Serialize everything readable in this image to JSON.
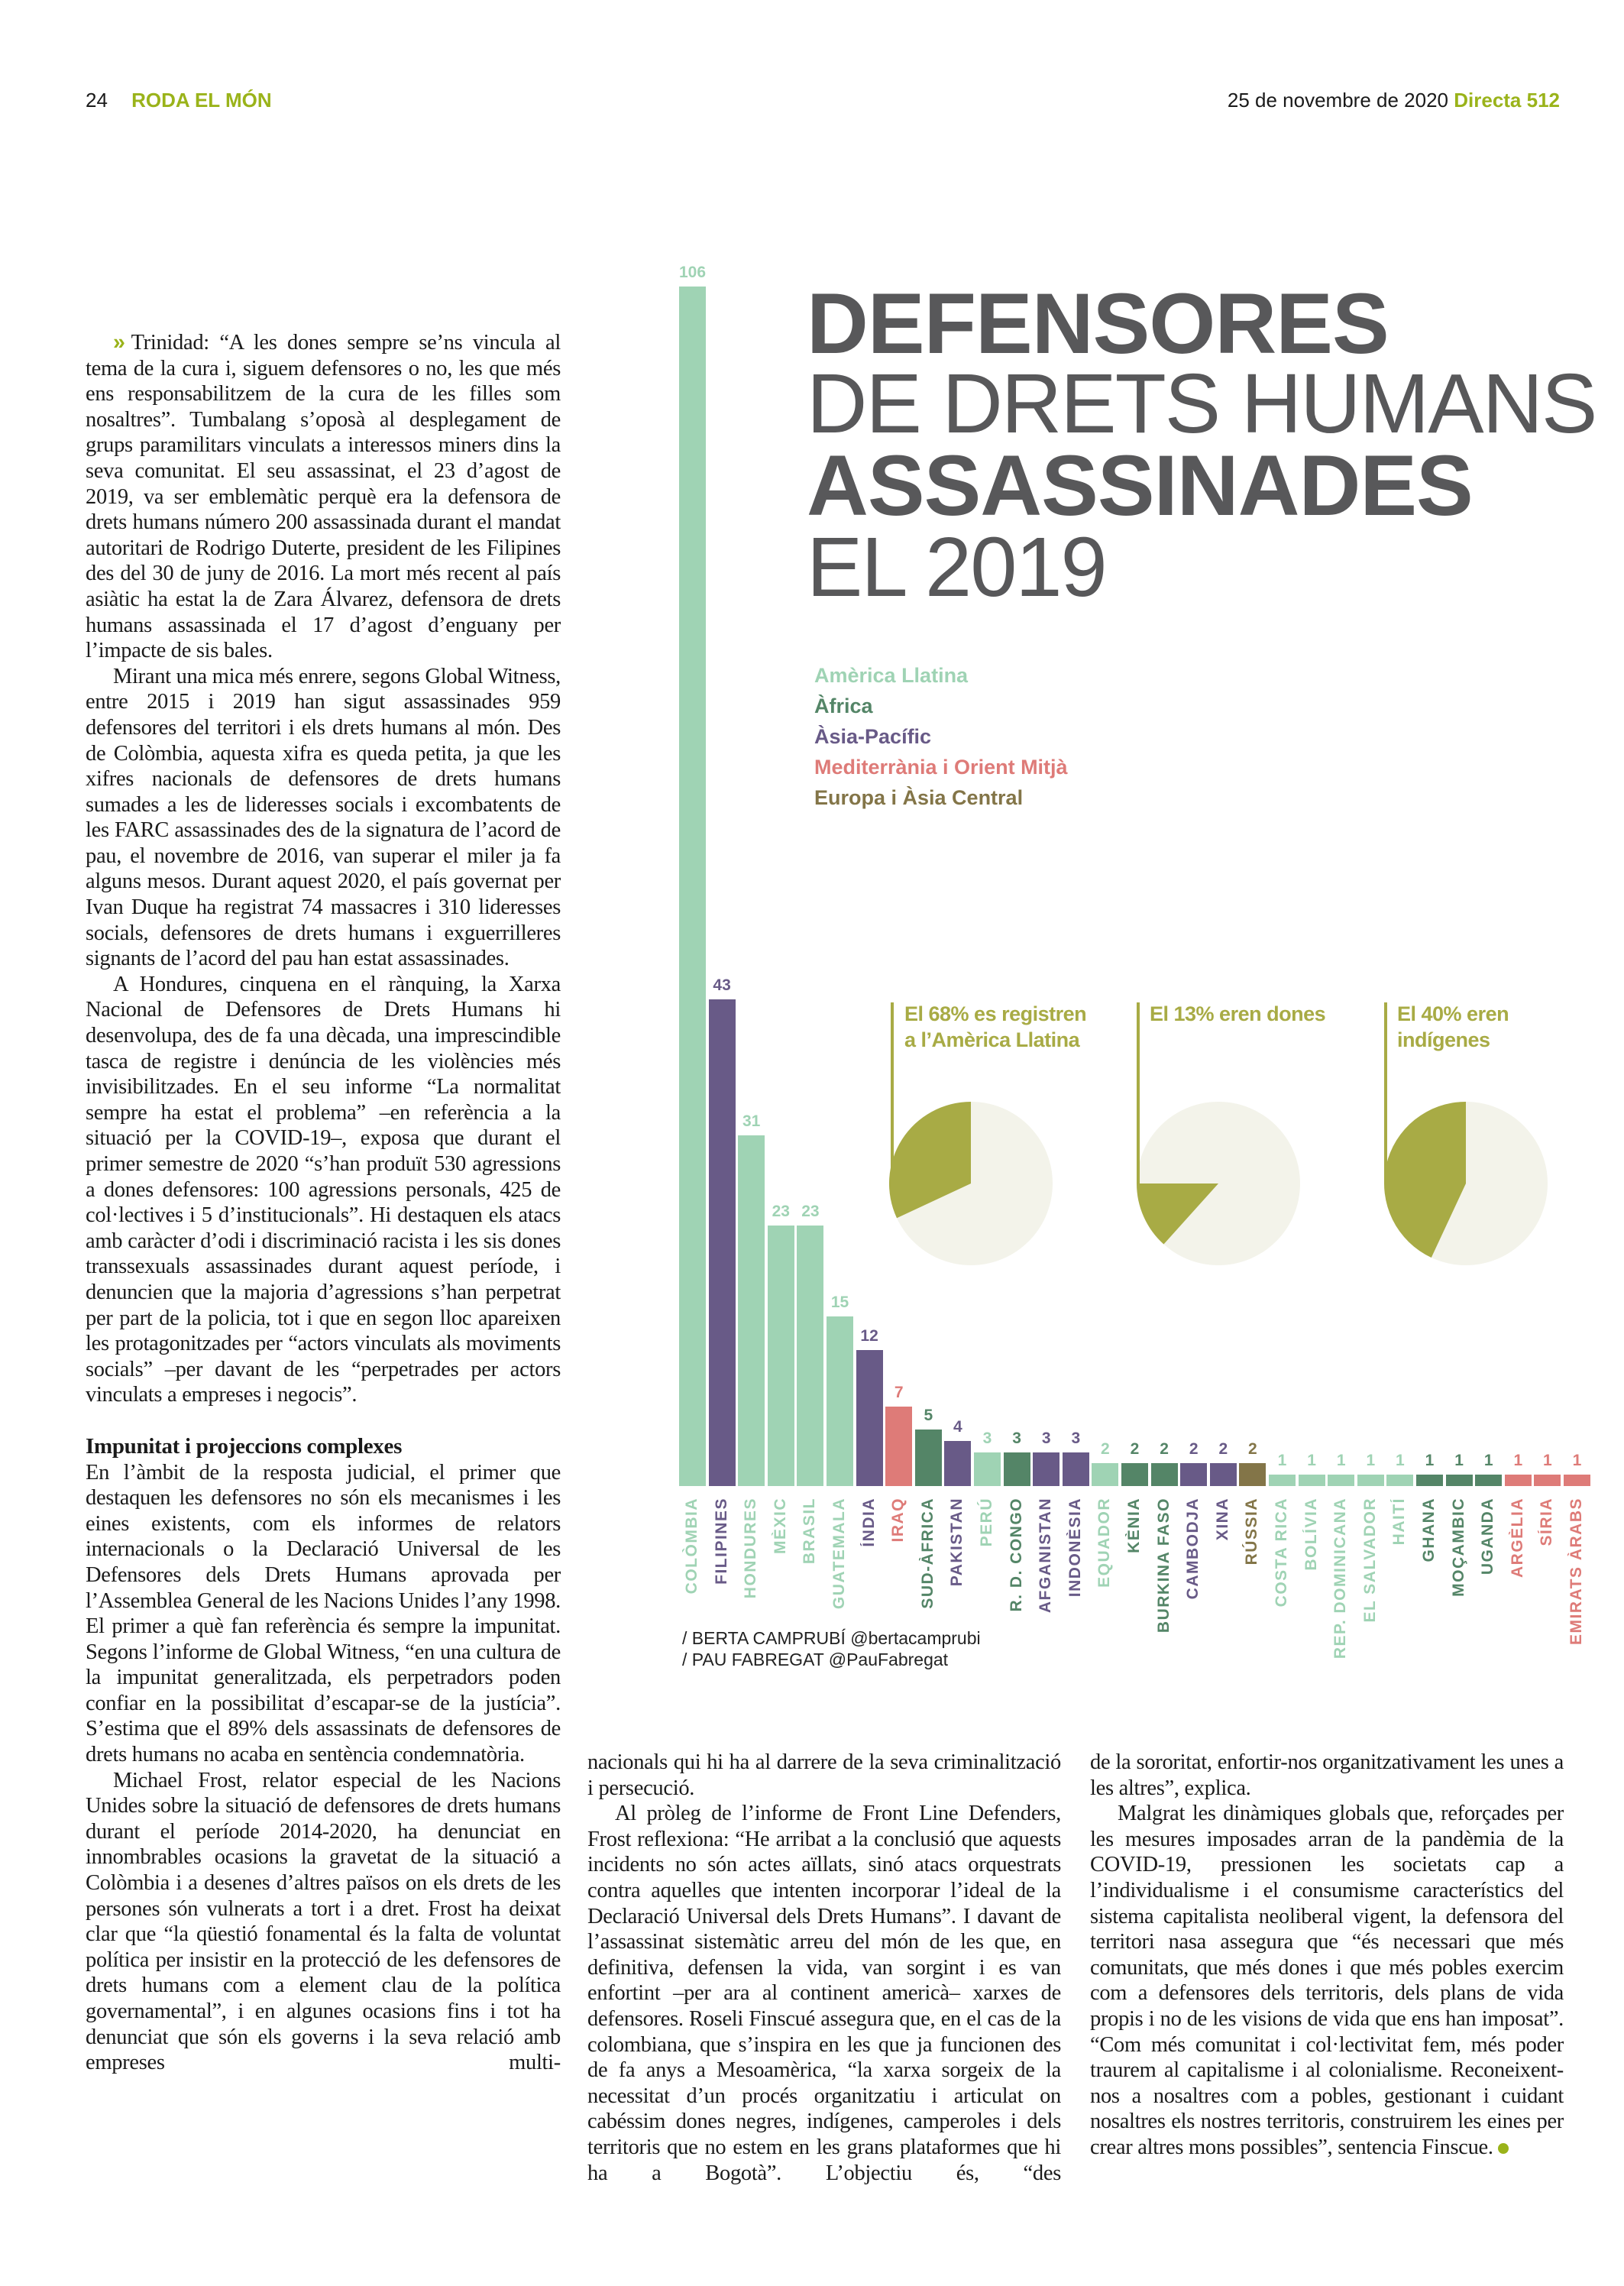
{
  "header": {
    "page_number": "24",
    "section": "RODA EL MÓN",
    "date": "25 de novembre de 2020",
    "publication": "Directa 512"
  },
  "colors": {
    "accent": "#9ab31a",
    "title": "#58585a",
    "pie_fill": "#a8ab45",
    "pie_bg": "#f3f3ea"
  },
  "infographic": {
    "title_lines": [
      "DEFENSORES",
      "DE DRETS HUMANS",
      "ASSASSINADES",
      "EL 2019"
    ],
    "legend": [
      {
        "label": "Amèrica Llatina",
        "region": "latam",
        "color": "#9fd3b4"
      },
      {
        "label": "Àfrica",
        "region": "africa",
        "color": "#548567"
      },
      {
        "label": "Àsia-Pacífic",
        "region": "asia",
        "color": "#685a87"
      },
      {
        "label": "Mediterrània i Orient Mitjà",
        "region": "med",
        "color": "#de7b78"
      },
      {
        "label": "Europa i Àsia Central",
        "region": "europe",
        "color": "#837548"
      }
    ],
    "pies": [
      {
        "line1": "El 68% es registren",
        "line2": "a l’Amèrica Llatina",
        "percent": 68
      },
      {
        "line1": "El 13% eren dones",
        "line2": "",
        "percent": 13
      },
      {
        "line1": "El 40% eren",
        "line2": "indígenes",
        "percent": 40
      }
    ],
    "credits": [
      "/ BERTA CAMPRUBÍ @bertacamprubi",
      "/ PAU FABREGAT @PauFabregat"
    ]
  },
  "chart_data": {
    "type": "bar",
    "title": "Defensores de drets humans assassinades el 2019",
    "xlabel": "",
    "ylabel": "",
    "ylim": [
      0,
      106
    ],
    "categories": [
      "COLÒMBIA",
      "FILIPINES",
      "HONDURES",
      "MÈXIC",
      "BRASIL",
      "GUATEMALA",
      "ÍNDIA",
      "IRAQ",
      "SUD-ÀFRICA",
      "PAKISTAN",
      "PERÚ",
      "R. D. CONGO",
      "AFGANISTAN",
      "INDONÈSIA",
      "EQUADOR",
      "KÈNIA",
      "BURKINA FASO",
      "CAMBODJA",
      "XINA",
      "RÚSSIA",
      "COSTA RICA",
      "BOLÍVIA",
      "REP. DOMINICANA",
      "EL SALVADOR",
      "HAITÍ",
      "GHANA",
      "MOÇAMBIC",
      "UGANDA",
      "ARGÈLIA",
      "SÍRIA",
      "EMIRATS ÀRABS"
    ],
    "values": [
      106,
      43,
      31,
      23,
      23,
      15,
      12,
      7,
      5,
      4,
      3,
      3,
      3,
      3,
      2,
      2,
      2,
      2,
      2,
      2,
      1,
      1,
      1,
      1,
      1,
      1,
      1,
      1,
      1,
      1,
      1
    ],
    "regions": [
      "latam",
      "asia",
      "latam",
      "latam",
      "latam",
      "latam",
      "asia",
      "med",
      "africa",
      "asia",
      "latam",
      "africa",
      "asia",
      "asia",
      "latam",
      "africa",
      "africa",
      "asia",
      "asia",
      "europe",
      "latam",
      "latam",
      "latam",
      "latam",
      "latam",
      "africa",
      "africa",
      "africa",
      "med",
      "med",
      "med"
    ]
  },
  "article": {
    "col1_p1": "Trinidad: “A les dones sempre se’ns vincula al tema de la cura i, siguem defensores o no, les que més ens responsabilitzem de la cura de les filles som nosaltres”. Tumbalang s’oposà al desplegament de grups paramilitars vinculats a interessos miners dins la seva comunitat. El seu assassinat, el 23 d’agost de 2019, va ser emblemàtic perquè era la defensora de drets humans número 200 assassinada durant el mandat autoritari de Rodrigo Duterte, president de les Filipines des del 30 de juny de 2016. La mort més recent al país asiàtic ha estat la de Zara Álvarez, defensora de drets humans assassinada el 17 d’agost d’enguany per l’impacte de sis bales.",
    "col1_p2": "Mirant una mica més enrere, segons Global Witness, entre 2015 i 2019 han sigut assassinades 959 defensores del territori i els drets humans al món. Des de Colòmbia, aquesta xifra es queda petita, ja que les xifres nacionals de defensores de drets humans sumades a les de lideresses socials i excombatents de les FARC assassinades des de la signatura de l’acord de pau, el novembre de 2016, van superar el miler ja fa alguns mesos. Durant aquest 2020, el país governat per Ivan Duque ha registrat 74 massacres i 310 lideresses socials, defensores de drets humans i exguerrilleres signants de l’acord del pau han estat assassinades.",
    "col1_p3": "A Hondures, cinquena en el rànquing, la Xarxa Nacional de Defensores de Drets Humans hi desenvolupa, des de fa una dècada, una imprescindible tasca de registre i denúncia de les violències més invisibilitzades. En el seu informe “La normalitat sempre ha estat el problema” –en referència a la situació per la COVID-19–, exposa que durant el primer semestre de 2020 “s’han produït 530 agressions a dones defensores: 100 agressions personals, 425 de col·lectives i 5 d’institucionals”. Hi destaquen els atacs amb caràcter d’odi i discriminació racista i les sis dones transsexuals assassinades durant aquest període, i denuncien que la majoria d’agressions s’han perpetrat per part de la policia, tot i que en segon lloc apareixen les protagonitzades per “actors vinculats als moviments socials” –per davant de les “perpetrades per actors vinculats a empreses i negocis”.",
    "subheading": "Impunitat i projeccions complexes",
    "col1_p4": "En l’àmbit de la resposta judicial, el primer que destaquen les defensores no són els mecanismes i les eines existents, com els informes de relators internacionals o la Declaració Universal de les Defensores dels Drets Humans aprovada per l’Assemblea General de les Nacions Unides l’any 1998. El primer a què fan referència és sempre la impunitat. Segons l’informe de Global Witness, “en una cultura de la impunitat generalitzada, els perpetradors poden confiar en la possibilitat d’escapar-se de la justícia”. S’estima que el 89% dels assassinats de defensores de drets humans no acaba en sentència condemnatòria.",
    "col1_p5": "Michael Frost, relator especial de les Nacions Unides sobre la situació de defensores de drets humans durant el període 2014-2020, ha denunciat en innombrables ocasions la gravetat de la situació a Colòmbia i a desenes d’altres països on els drets de les persones són vulnerats a tort i a dret. Frost ha deixat clar que “la qüestió fonamental és la falta de voluntat política per insistir en la protecció de les defensores de drets humans com a element clau de la política governamental”, i en algunes ocasions fins i tot ha denunciat que són els governs i la seva relació amb empreses multi-",
    "col2_p1": "nacionals qui hi ha al darrere de la seva criminalització i persecució.",
    "col2_p2": "Al pròleg de l’informe de Front Line Defenders, Frost reflexiona: “He arribat a la conclusió que aquests incidents no són actes aïllats, sinó atacs orquestrats contra aquelles que intenten incorporar l’ideal de la Declaració Universal dels Drets Humans”. I davant de l’assassinat sistemàtic arreu del món de les que, en definitiva, defensen la vida, van sorgint i es van enfortint –per ara al continent americà– xarxes de defensores. Roseli Finscué assegura que, en el cas de la colombiana, que s’inspira en les que ja funcionen des de fa anys a Mesoamèrica, “la xarxa sorgeix de la necessitat d’un procés organitzatiu i articulat on cabéssim dones negres, indígenes, camperoles i dels territoris que no estem en les grans plataformes que hi ha a Bogotà”. L’objectiu és, “des",
    "col3_p1": "de la sororitat, enfortir-nos organitzativament les unes a les altres”, explica.",
    "col3_p2": "Malgrat les dinàmiques globals que, reforçades per les mesures imposades arran de la pandèmia de la COVID-19, pressionen les societats cap a l’individualisme i el consumisme característics del sistema capitalista neoliberal vigent, la defensora del territori nasa assegura que “és necessari que més comunitats, que més dones i que més pobles exercim com a defensores dels territoris, dels plans de vida propis i no de les visions de vida que ens han imposat”. “Com més comunitat i col·lectivitat fem, més poder traurem al capitalisme i al colonialisme. Reconeixent-nos a nosaltres com a pobles, gestionant i cuidant nosaltres els nostres territoris, construirem les eines per crear altres mons possibles”, sentencia Finscue."
  }
}
